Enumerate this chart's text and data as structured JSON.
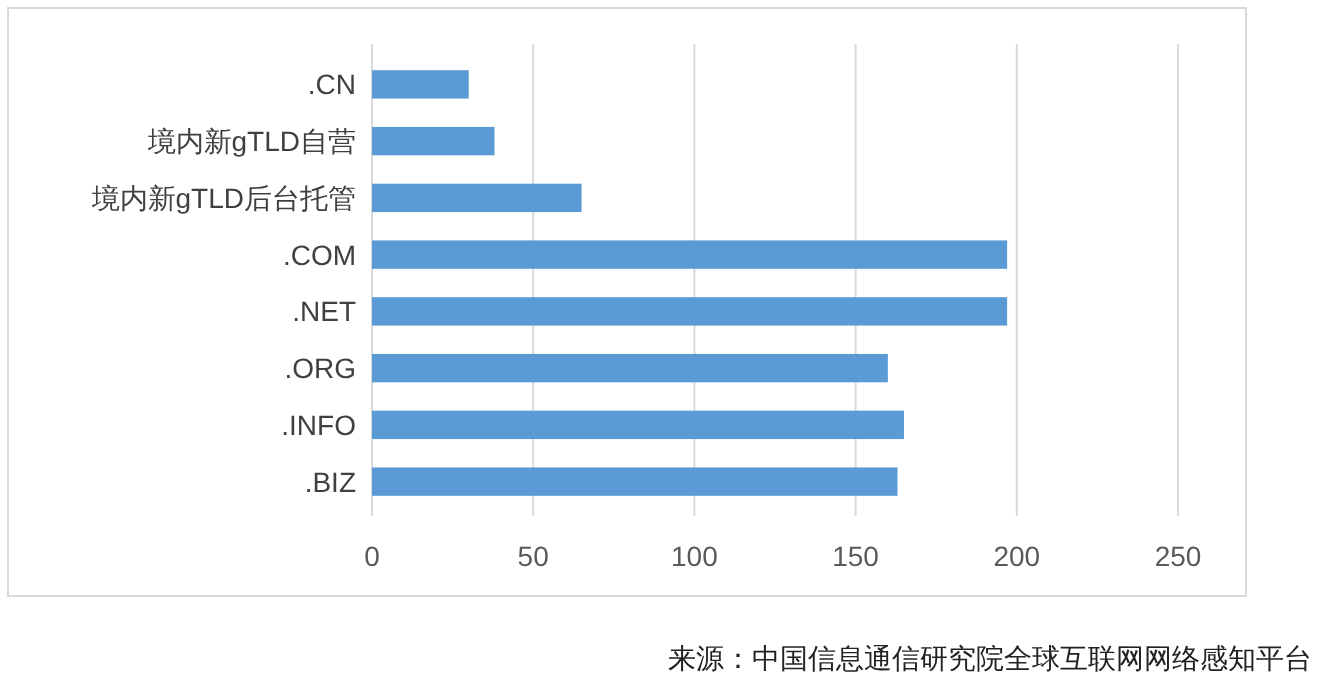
{
  "chart_data": {
    "type": "bar",
    "orientation": "horizontal",
    "categories": [
      ".CN",
      "境内新gTLD自营",
      "境内新gTLD后台托管",
      ".COM",
      ".NET",
      ".ORG",
      ".INFO",
      ".BIZ"
    ],
    "values": [
      30,
      38,
      65,
      197,
      197,
      160,
      165,
      163
    ],
    "color": "#5b9bd5",
    "xlim": [
      0,
      250
    ],
    "xticks": [
      0,
      50,
      100,
      150,
      200,
      250
    ],
    "grid": "x",
    "annotations": [
      "来源：中国信息通信研究院全球互联网网络感知平台"
    ]
  }
}
